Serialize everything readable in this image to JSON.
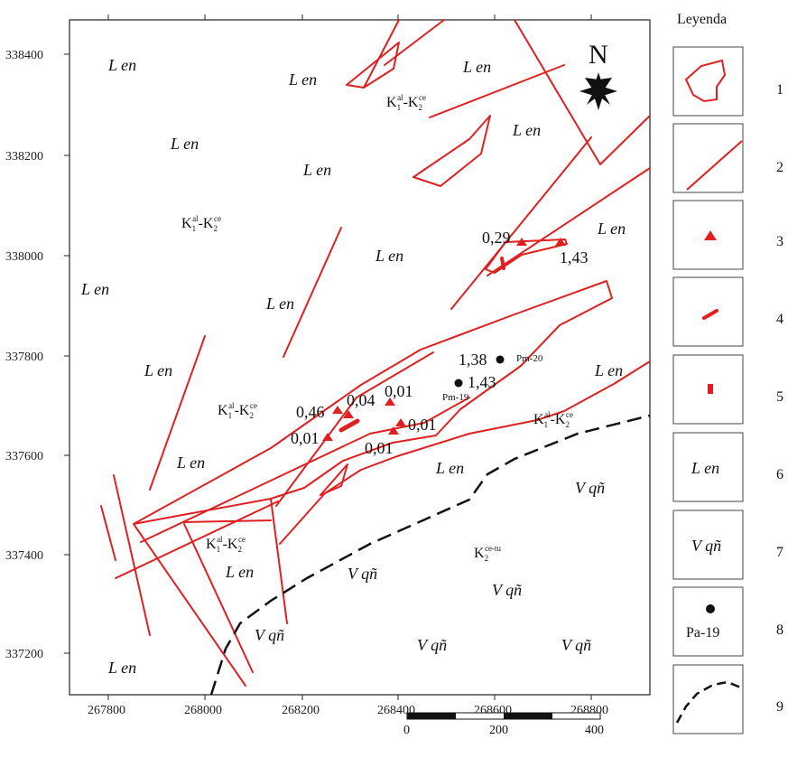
{
  "map": {
    "north_label": "N",
    "y_ticks": [
      "338400",
      "338200",
      "338000",
      "337800",
      "337600",
      "337400",
      "337200"
    ],
    "x_ticks": [
      "267800",
      "268000",
      "268200",
      "268400",
      "268600",
      "268800"
    ],
    "labels": {
      "len_1": "L en",
      "len_2": "L en",
      "len_3": "L en",
      "len_4": "L en",
      "len_5": "L en",
      "len_6": "L en",
      "len_7": "L en",
      "len_8": "L en",
      "len_9": "L en",
      "len_10": "L en",
      "len_11": "L en",
      "len_12": "L en",
      "len_13": "L en",
      "len_14": "L en",
      "len_15": "L en",
      "vqn_1": "V qñ",
      "vqn_2": "V qñ",
      "vqn_3": "V qñ",
      "vqn_4": "V qñ",
      "vqn_5": "V qñ",
      "vqn_6": "V qñ"
    },
    "formations": {
      "f1": {
        "k": "K",
        "s1": "1",
        "p1": "al",
        "dash": "-K",
        "s2": "2",
        "p2": "ce"
      },
      "f2": {
        "k": "K",
        "s1": "1",
        "p1": "al",
        "dash": "-K",
        "s2": "2",
        "p2": "ce"
      },
      "f3": {
        "k": "K",
        "s1": "1",
        "p1": "al",
        "dash": "-K",
        "s2": "2",
        "p2": "ce"
      },
      "f4": {
        "k": "K",
        "s1": "1",
        "p1": "al",
        "dash": "-K",
        "s2": "2",
        "p2": "ce"
      },
      "f5": {
        "k": "K",
        "s1": "1",
        "p1": "al",
        "dash": "-K",
        "s2": "2",
        "p2": "ce"
      },
      "f6": {
        "k": "K",
        "s1": "2",
        "p1": "ce-tu"
      }
    },
    "values": {
      "v_029": "0,29",
      "v_143a": "1,43",
      "v_138": "1,38",
      "v_143b": "1,43",
      "v_046": "0,46",
      "v_004": "0,04",
      "v_001a": "0,01",
      "v_001b": "0,01",
      "v_001c": "0,01",
      "v_001d": "0,01"
    },
    "points": {
      "pm20": "Pm-20",
      "pm19": "Pm-19"
    },
    "scale": {
      "labels": [
        "0",
        "200",
        "400"
      ]
    },
    "colors": {
      "fault": "#e02020",
      "contact": "#111111",
      "sample": "#e02020"
    }
  },
  "legend": {
    "title": "Leyenda",
    "items": [
      {
        "num": "1",
        "symbol": "closed-fault-polygon-icon"
      },
      {
        "num": "2",
        "symbol": "fault-line-icon"
      },
      {
        "num": "3",
        "symbol": "triangle-sample-icon"
      },
      {
        "num": "4",
        "symbol": "ore-lens-icon"
      },
      {
        "num": "5",
        "symbol": "ore-body-icon"
      },
      {
        "num": "6",
        "symbol": "len-unit",
        "text": "L en"
      },
      {
        "num": "7",
        "symbol": "vqn-unit",
        "text": "V qñ"
      },
      {
        "num": "8",
        "symbol": "well-point-icon",
        "text": "Pa-19"
      },
      {
        "num": "9",
        "symbol": "contact-dashed-icon"
      }
    ]
  }
}
